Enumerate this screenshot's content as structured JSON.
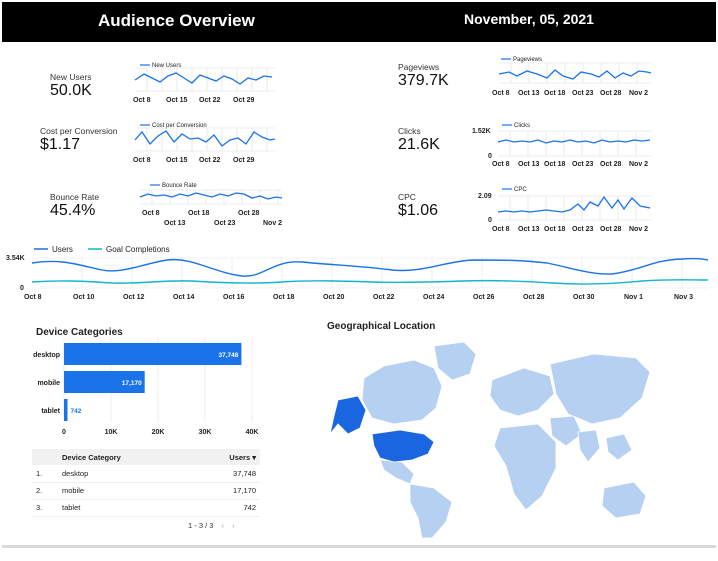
{
  "header": {
    "title": "Audience Overview",
    "date": "November, 05, 2021"
  },
  "colors": {
    "accent": "#1a73e8",
    "teal": "#12b5cb",
    "dark_blue": "#1a73e8",
    "map_light": "#b6d0f2",
    "map_dark": "#1a66e0"
  },
  "kpis": {
    "new_users": {
      "label": "New Users",
      "value": "50.0K",
      "legend": "New Users",
      "ticks": [
        "Oct 8",
        "Oct 15",
        "Oct 22",
        "Oct 29"
      ]
    },
    "cost_per_conversion": {
      "label": "Cost per Conversion",
      "value": "$1.17",
      "legend": "Cost per Conversion",
      "ticks": [
        "Oct 8",
        "Oct 15",
        "Oct 22",
        "Oct 29"
      ]
    },
    "bounce_rate": {
      "label": "Bounce Rate",
      "value": "45.4%",
      "legend": "Bounce Rate",
      "ticks_top": [
        "Oct 8",
        "Oct 18",
        "Oct 28"
      ],
      "ticks_bottom": [
        "Oct 13",
        "Oct 23",
        "Nov 2"
      ]
    },
    "pageviews": {
      "label": "Pageviews",
      "value": "379.7K",
      "legend": "Pageviews",
      "ticks": [
        "Oct 8",
        "Oct 13",
        "Oct 18",
        "Oct 23",
        "Oct 28",
        "Nov 2"
      ]
    },
    "clicks": {
      "label": "Clicks",
      "value": "21.6K",
      "legend": "Clicks",
      "ymax": "1.52K",
      "ymin": "0",
      "ticks": [
        "Oct 8",
        "Oct 13",
        "Oct 18",
        "Oct 23",
        "Oct 28",
        "Nov 2"
      ]
    },
    "cpc": {
      "label": "CPC",
      "value": "$1.06",
      "legend": "CPC",
      "ymax": "2.09",
      "ymin": "0",
      "ticks": [
        "Oct 8",
        "Oct 13",
        "Oct 18",
        "Oct 23",
        "Oct 28",
        "Nov 2"
      ]
    }
  },
  "timeline": {
    "legend": [
      "Users",
      "Goal Completions"
    ],
    "ymax": "3.54K",
    "ymin": "0",
    "ticks": [
      "Oct 8",
      "Oct 10",
      "Oct 12",
      "Oct 14",
      "Oct 16",
      "Oct 18",
      "Oct 20",
      "Oct 22",
      "Oct 24",
      "Oct 26",
      "Oct 28",
      "Oct 30",
      "Nov 1",
      "Nov 3"
    ]
  },
  "device_categories": {
    "title": "Device Categories",
    "chart_data": {
      "type": "bar",
      "categories": [
        "desktop",
        "mobile",
        "tablet"
      ],
      "values": [
        37748,
        17170,
        742
      ],
      "value_labels": [
        "37,748",
        "17,170",
        "742"
      ],
      "xlim": [
        0,
        40000
      ],
      "xticks": [
        "0",
        "10K",
        "20K",
        "30K",
        "40K"
      ]
    },
    "table": {
      "headers": [
        "Device Category",
        "Users ▾"
      ],
      "rows": [
        {
          "index": "1.",
          "category": "desktop",
          "users": "37,748"
        },
        {
          "index": "2.",
          "category": "mobile",
          "users": "17,170"
        },
        {
          "index": "3.",
          "category": "tablet",
          "users": "742"
        }
      ],
      "pagination": "1 - 3 / 3",
      "prev": "‹",
      "next": "›"
    }
  },
  "geo": {
    "title": "Geographical Location"
  }
}
